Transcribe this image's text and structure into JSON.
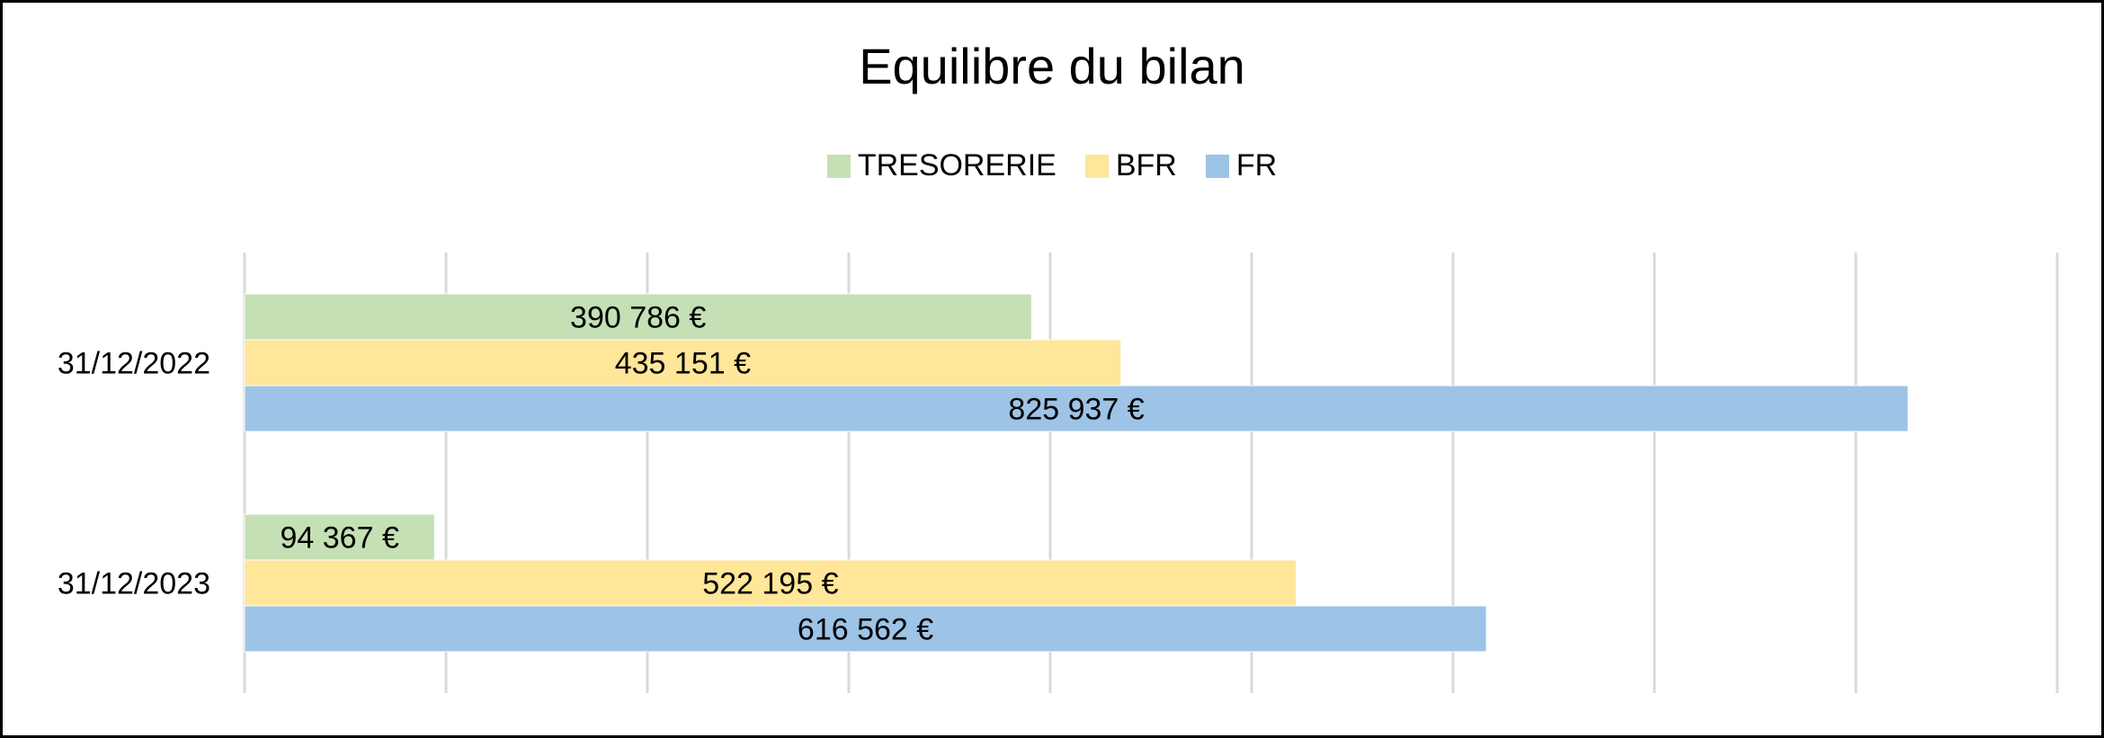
{
  "chart_data": {
    "type": "bar",
    "orientation": "horizontal",
    "title": "Equilibre du bilan",
    "categories": [
      "31/12/2022",
      "31/12/2023"
    ],
    "series": [
      {
        "name": "TRESORERIE",
        "color": "#C5E0B4",
        "values": [
          390786,
          94367
        ],
        "labels": [
          "390 786 €",
          "94 367 €"
        ]
      },
      {
        "name": "BFR",
        "color": "#FFE699",
        "values": [
          435151,
          522195
        ],
        "labels": [
          "435 151 €",
          "522 195 €"
        ]
      },
      {
        "name": "FR",
        "color": "#9DC3E6",
        "values": [
          825937,
          616562
        ],
        "labels": [
          "825 937 €",
          "616 562 €"
        ]
      }
    ],
    "xlim": [
      0,
      900000
    ],
    "x_gridline_step": 100000,
    "x_tick_labels_visible": false,
    "grid": true,
    "legend_position": "top"
  }
}
